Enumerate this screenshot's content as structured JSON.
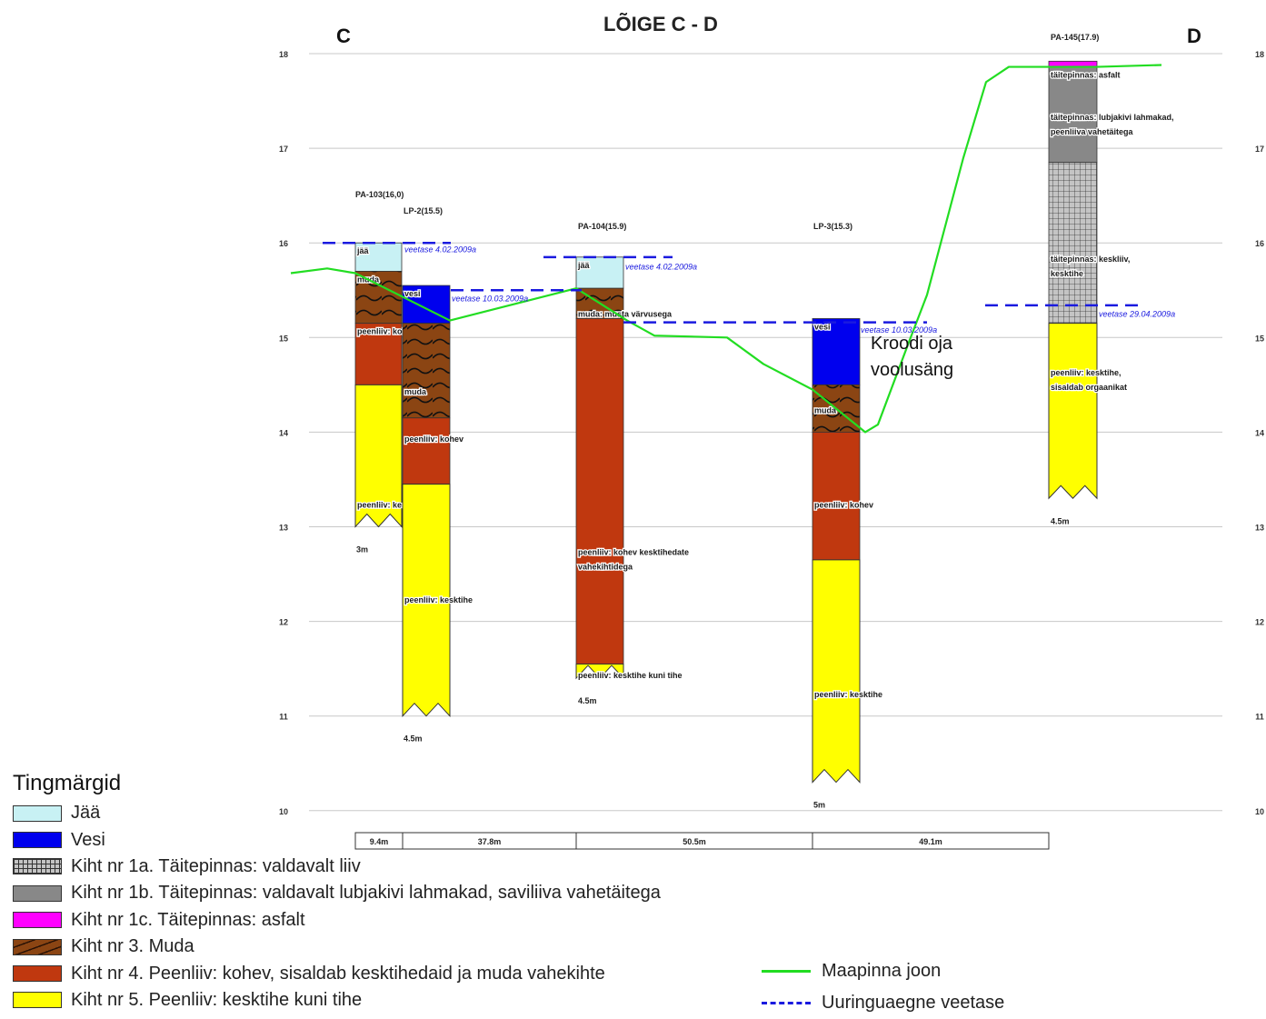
{
  "title": "LÕIGE C - D",
  "end_left": "C",
  "end_right": "D",
  "elevation_ticks": [
    "18",
    "17",
    "16",
    "15",
    "14",
    "13",
    "12",
    "11",
    "10"
  ],
  "boreholes": [
    {
      "id": "PA-103",
      "label": "PA-103(16,0)",
      "top": 16.0,
      "depth_label": "3m",
      "layers": [
        {
          "type": "ice",
          "from": 16.0,
          "to": 15.7,
          "text": "jää"
        },
        {
          "type": "mud",
          "from": 15.7,
          "to": 15.15,
          "text": "muda"
        },
        {
          "type": "loose_sand",
          "from": 15.15,
          "to": 14.5,
          "text": "peenliiv: kohev"
        },
        {
          "type": "dense_sand",
          "from": 14.5,
          "to": 13.0,
          "text": "peenliiv: kesktihe"
        }
      ]
    },
    {
      "id": "LP-2",
      "label": "LP-2(15.5)",
      "top": 15.5,
      "depth_label": "4.5m",
      "layers": [
        {
          "type": "water",
          "from": 15.55,
          "to": 15.15,
          "text": "vesi"
        },
        {
          "type": "mud",
          "from": 15.15,
          "to": 14.15,
          "text": "muda"
        },
        {
          "type": "loose_sand",
          "from": 14.15,
          "to": 13.45,
          "text": "peenliiv: kohev"
        },
        {
          "type": "dense_sand",
          "from": 13.45,
          "to": 11.0,
          "text": "peenliiv: kesktihe"
        }
      ]
    },
    {
      "id": "PA-104",
      "label": "PA-104(15.9)",
      "top": 15.9,
      "depth_label": "4.5m",
      "layers": [
        {
          "type": "ice",
          "from": 15.85,
          "to": 15.52,
          "text": "jää"
        },
        {
          "type": "mud",
          "from": 15.52,
          "to": 15.2,
          "text": "muda: musta värvusega"
        },
        {
          "type": "loose_sand",
          "from": 15.2,
          "to": 11.55,
          "text": "peenliiv: kohev kesktihedate vahekihtidega"
        },
        {
          "type": "dense_sand",
          "from": 11.55,
          "to": 11.4,
          "text": "peenliiv: kesktihe kuni tihe"
        }
      ]
    },
    {
      "id": "LP-3",
      "label": "LP-3(15.3)",
      "top": 15.3,
      "depth_label": "5m",
      "layers": [
        {
          "type": "water",
          "from": 15.2,
          "to": 14.5,
          "text": "vesi"
        },
        {
          "type": "mud",
          "from": 14.5,
          "to": 14.0,
          "text": "muda"
        },
        {
          "type": "loose_sand",
          "from": 14.0,
          "to": 12.65,
          "text": "peenliiv: kohev"
        },
        {
          "type": "dense_sand",
          "from": 12.65,
          "to": 10.3,
          "text": "peenliiv: kesktihe"
        }
      ]
    },
    {
      "id": "PA-145",
      "label": "PA-145(17.9)",
      "top": 17.9,
      "depth_label": "4.5m",
      "layers": [
        {
          "type": "asphalt",
          "from": 17.92,
          "to": 17.86,
          "text": "täitepinnas: asfalt"
        },
        {
          "type": "fill_gray",
          "from": 17.86,
          "to": 16.85,
          "text": "täitepinnas: lubjakivi lahmakad, peenliiva vahetäitega"
        },
        {
          "type": "fill_grid",
          "from": 16.85,
          "to": 15.15,
          "text": "täitepinnas: keskliiv, kesktihe"
        },
        {
          "type": "dense_sand",
          "from": 15.15,
          "to": 13.3,
          "text": "peenliiv: kesktihe, sisaldab orgaanikat"
        }
      ]
    }
  ],
  "water_levels": [
    {
      "text": "veetase 4.02.2009a"
    },
    {
      "text": "veetase 10.03.2009a"
    },
    {
      "text": "veetase 4.02.2009a"
    },
    {
      "text": "veetase 10.03.2009a"
    },
    {
      "text": "veetase 29.04.2009a"
    }
  ],
  "annotation": "Kroodi oja voolusäng",
  "distances": [
    "9.4m",
    "37.8m",
    "50.5m",
    "49.1m"
  ],
  "colors": {
    "ice": "#c8f1f4",
    "water": "#0000ee",
    "mud": "#8b4513",
    "loose_sand": "#c0380f",
    "dense_sand": "#ffff00",
    "asphalt": "#ff00ff",
    "fill_gray": "#888888",
    "fill_grid": "#bbbbbb",
    "ground_line": "#22dd22",
    "water_level": "#1a1adf"
  },
  "legend": {
    "title": "Tingmärgid",
    "items": [
      {
        "key": "ice",
        "text": "Jää"
      },
      {
        "key": "water",
        "text": "Vesi"
      },
      {
        "key": "fill_grid",
        "text": "Kiht nr 1a. Täitepinnas: valdavalt liiv"
      },
      {
        "key": "fill_gray",
        "text": "Kiht nr 1b. Täitepinnas: valdavalt lubjakivi lahmakad, saviliiva vahetäitega"
      },
      {
        "key": "asphalt",
        "text": "Kiht nr 1c. Täitepinnas: asfalt"
      },
      {
        "key": "mud",
        "text": "Kiht nr 3.  Muda"
      },
      {
        "key": "loose_sand",
        "text": "Kiht nr 4.  Peenliiv: kohev, sisaldab kesktihedaid ja muda vahekihte"
      },
      {
        "key": "dense_sand",
        "text": "Kiht nr 5.  Peenliiv: kesktihe kuni tihe"
      }
    ],
    "ground_line": "Maapinna joon",
    "water_level": "Uuringuaegne veetase"
  }
}
